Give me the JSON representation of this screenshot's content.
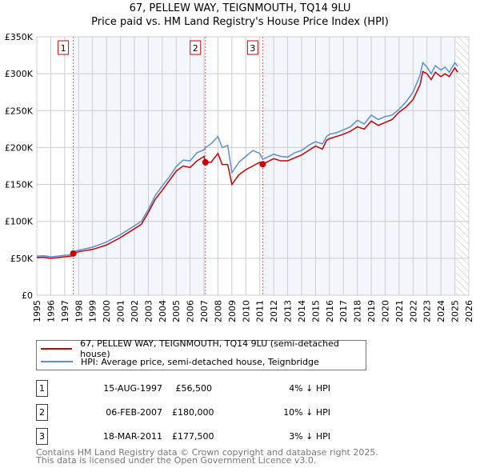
{
  "chart_data": {
    "type": "line",
    "title": "67, PELLEW WAY, TEIGNMOUTH, TQ14 9LU",
    "subtitle": "Price paid vs. HM Land Registry's House Price Index (HPI)",
    "xlim": [
      1995,
      2026
    ],
    "ylim": [
      0,
      350000
    ],
    "x_ticks": [
      "1995",
      "1996",
      "1997",
      "1998",
      "1999",
      "2000",
      "2001",
      "2002",
      "2003",
      "2004",
      "2005",
      "2006",
      "2007",
      "2008",
      "2009",
      "2010",
      "2011",
      "2012",
      "2013",
      "2014",
      "2015",
      "2016",
      "2017",
      "2018",
      "2019",
      "2020",
      "2021",
      "2022",
      "2023",
      "2024",
      "2025",
      "2026"
    ],
    "y_ticks": [
      "£0",
      "£50K",
      "£100K",
      "£150K",
      "£200K",
      "£250K",
      "£300K",
      "£350K"
    ],
    "grid": true,
    "series": [
      {
        "name": "67, PELLEW WAY, TEIGNMOUTH, TQ14 9LU (semi-detached house)",
        "color": "#cc0000",
        "x": [
          1995,
          1995.5,
          1996,
          1996.5,
          1997,
          1997.5,
          1997.62,
          1998,
          1999,
          2000,
          2001,
          2002,
          2002.5,
          2003,
          2003.5,
          2004,
          2004.5,
          2005,
          2005.5,
          2006,
          2006.5,
          2007,
          2007.1,
          2007.5,
          2008,
          2008.3,
          2008.7,
          2009,
          2009.5,
          2010,
          2010.5,
          2011,
          2011.21,
          2012,
          2012.5,
          2013,
          2013.5,
          2014,
          2014.5,
          2015,
          2015.5,
          2015.8,
          2016,
          2016.5,
          2017,
          2017.5,
          2018,
          2018.5,
          2019,
          2019.5,
          2020,
          2020.5,
          2021,
          2021.5,
          2022,
          2022.5,
          2022.7,
          2023,
          2023.3,
          2023.6,
          2024,
          2024.3,
          2024.6,
          2025,
          2025.2
        ],
        "y": [
          51000,
          51500,
          50000,
          51000,
          52000,
          53000,
          56500,
          59000,
          62000,
          68000,
          78000,
          90000,
          96000,
          112000,
          130000,
          142000,
          155000,
          168000,
          175000,
          173000,
          182000,
          188000,
          180000,
          180000,
          192000,
          177000,
          177000,
          150000,
          163000,
          170000,
          175000,
          180000,
          177500,
          185000,
          182000,
          182000,
          186000,
          190000,
          196000,
          202000,
          198000,
          210000,
          212000,
          215000,
          218000,
          222000,
          228000,
          225000,
          236000,
          230000,
          234000,
          238000,
          248000,
          255000,
          265000,
          285000,
          303000,
          300000,
          292000,
          302000,
          296000,
          300000,
          296000,
          308000,
          302000
        ]
      },
      {
        "name": "HPI: Average price, semi-detached house, Teignbridge",
        "color": "#5b8fd6",
        "x": [
          1995,
          1995.5,
          1996,
          1996.5,
          1997,
          1997.5,
          1997.62,
          1998,
          1999,
          2000,
          2001,
          2002,
          2002.5,
          2003,
          2003.5,
          2004,
          2004.5,
          2005,
          2005.5,
          2006,
          2006.5,
          2007,
          2007.1,
          2007.5,
          2008,
          2008.3,
          2008.7,
          2009,
          2009.5,
          2010,
          2010.5,
          2011,
          2011.21,
          2012,
          2012.5,
          2013,
          2013.5,
          2014,
          2014.5,
          2015,
          2015.5,
          2015.8,
          2016,
          2016.5,
          2017,
          2017.5,
          2018,
          2018.5,
          2019,
          2019.5,
          2020,
          2020.5,
          2021,
          2021.5,
          2022,
          2022.5,
          2022.7,
          2023,
          2023.3,
          2023.6,
          2024,
          2024.3,
          2024.6,
          2025,
          2025.2
        ],
        "y": [
          53000,
          53500,
          52000,
          53000,
          54000,
          55000,
          59000,
          61000,
          65000,
          72000,
          82000,
          94000,
          100000,
          116000,
          135000,
          148000,
          160000,
          174000,
          183000,
          182000,
          193000,
          197000,
          200000,
          205000,
          215000,
          200000,
          203000,
          166000,
          180000,
          188000,
          196000,
          192000,
          184000,
          191000,
          188000,
          187000,
          193000,
          196000,
          203000,
          208000,
          205000,
          215000,
          218000,
          220000,
          224000,
          228000,
          237000,
          232000,
          244000,
          238000,
          242000,
          244000,
          252000,
          262000,
          275000,
          298000,
          315000,
          309000,
          300000,
          311000,
          305000,
          309000,
          302000,
          315000,
          310000
        ]
      }
    ],
    "sales": [
      {
        "num": "1",
        "x": 1997.62,
        "y": 56500
      },
      {
        "num": "2",
        "x": 2007.1,
        "y": 180000
      },
      {
        "num": "3",
        "x": 2011.21,
        "y": 177500
      }
    ]
  },
  "legend": [
    "67, PELLEW WAY, TEIGNMOUTH, TQ14 9LU (semi-detached house)",
    "HPI: Average price, semi-detached house, Teignbridge"
  ],
  "transactions": [
    {
      "num": "1",
      "date": "15-AUG-1997",
      "price": "£56,500",
      "hpi": "4% ↓ HPI"
    },
    {
      "num": "2",
      "date": "06-FEB-2007",
      "price": "£180,000",
      "hpi": "10% ↓ HPI"
    },
    {
      "num": "3",
      "date": "18-MAR-2011",
      "price": "£177,500",
      "hpi": "3% ↓ HPI"
    }
  ],
  "footer": [
    "Contains HM Land Registry data © Crown copyright and database right 2025.",
    "This data is licensed under the Open Government Licence v3.0."
  ]
}
